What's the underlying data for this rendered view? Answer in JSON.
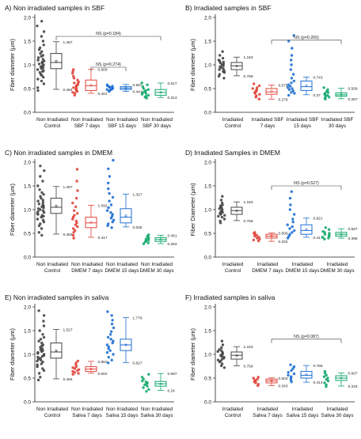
{
  "figure": {
    "colors": {
      "control": "#444444",
      "day7": "#e0453b",
      "day15": "#1f6fd1",
      "day30": "#12a86b"
    }
  },
  "chart_data": [
    {
      "type": "box",
      "title": "A) Non irradiated samples in SBF",
      "ylabel": "Fiber diameter (µm)",
      "ylim": [
        0,
        2.0
      ],
      "yticks": [
        "0.0",
        "0.5",
        "1.0",
        "1.5",
        "2.0"
      ],
      "categories": [
        [
          "Non Irradiated",
          "Control"
        ],
        [
          "Non Irradiated",
          "SBF 7 days"
        ],
        [
          "Non Irradiated",
          "SBF 15 days"
        ],
        [
          "Non Irradiated",
          "SBF 30 days"
        ]
      ],
      "series": [
        {
          "color": "#444444",
          "q1": 0.92,
          "median": 1.05,
          "q3": 1.24,
          "upper_label": "1.487",
          "lower_label": "0.484",
          "upper": 1.487,
          "lower": 0.484,
          "points": [
            0.46,
            0.52,
            0.6,
            0.66,
            0.7,
            0.74,
            0.78,
            0.8,
            0.84,
            0.86,
            0.88,
            0.9,
            0.92,
            0.94,
            0.96,
            0.98,
            1.0,
            1.02,
            1.04,
            1.06,
            1.08,
            1.1,
            1.12,
            1.15,
            1.18,
            1.2,
            1.24,
            1.28,
            1.32,
            1.36,
            1.42,
            1.5,
            1.6,
            1.7,
            1.82,
            1.92
          ]
        },
        {
          "color": "#e0453b",
          "q1": 0.46,
          "median": 0.56,
          "q3": 0.68,
          "upper_label": "0.909",
          "lower_label": "0.401",
          "upper": 0.909,
          "lower": 0.401,
          "points": [
            0.36,
            0.4,
            0.42,
            0.44,
            0.46,
            0.48,
            0.5,
            0.52,
            0.54,
            0.56,
            0.58,
            0.6,
            0.62,
            0.64,
            0.68,
            0.72,
            0.76,
            0.82,
            0.86,
            0.9
          ]
        },
        {
          "color": "#1f6fd1",
          "q1": 0.48,
          "median": 0.51,
          "q3": 0.54,
          "upper_label": "0.587",
          "lower_label": "0.441",
          "upper": 0.587,
          "lower": 0.441,
          "points": [
            0.44,
            0.46,
            0.47,
            0.48,
            0.49,
            0.5,
            0.51,
            0.52,
            0.53,
            0.54,
            0.55,
            0.56,
            0.58
          ]
        },
        {
          "color": "#12a86b",
          "q1": 0.36,
          "median": 0.42,
          "q3": 0.48,
          "upper_label": "0.617",
          "lower_label": "0.313",
          "upper": 0.617,
          "lower": 0.313,
          "points": [
            0.3,
            0.32,
            0.34,
            0.36,
            0.38,
            0.4,
            0.42,
            0.44,
            0.46,
            0.48,
            0.5,
            0.54,
            0.58,
            0.62
          ]
        }
      ],
      "brackets": [
        {
          "from": 1,
          "to": 2,
          "label": "NS (p=0.274)",
          "y": 0.95
        },
        {
          "from": 0,
          "to": 3,
          "label": "NS (p=0.184)",
          "y": 1.6
        }
      ]
    },
    {
      "type": "box",
      "title": "B) Irradiated samples in SBF",
      "ylabel": "Fiber diameter (µm)",
      "ylim": [
        0,
        2.0
      ],
      "yticks": [
        "0.0",
        "0.5",
        "1.0",
        "1.5",
        "2.0"
      ],
      "categories": [
        [
          "Irradiated",
          "Control"
        ],
        [
          "Irradiated SBF",
          "7 days"
        ],
        [
          "Irradiated SBF",
          "15 days"
        ],
        [
          "Irradiated SBF",
          "30 days"
        ]
      ],
      "series": [
        {
          "color": "#444444",
          "q1": 0.9,
          "median": 0.98,
          "q3": 1.05,
          "upper_label": "1.163",
          "lower_label": "0.769",
          "upper": 1.163,
          "lower": 0.769,
          "points": [
            0.72,
            0.76,
            0.8,
            0.84,
            0.86,
            0.88,
            0.9,
            0.92,
            0.94,
            0.96,
            0.98,
            1.0,
            1.02,
            1.04,
            1.06,
            1.08,
            1.1,
            1.14,
            1.2,
            1.28
          ]
        },
        {
          "color": "#e0453b",
          "q1": 0.38,
          "median": 0.43,
          "q3": 0.5,
          "upper_label": "0.575",
          "lower_label": "0.278",
          "upper": 0.575,
          "lower": 0.278,
          "points": [
            0.28,
            0.32,
            0.35,
            0.38,
            0.4,
            0.42,
            0.44,
            0.46,
            0.48,
            0.5,
            0.52,
            0.56,
            0.6
          ]
        },
        {
          "color": "#1f6fd1",
          "q1": 0.46,
          "median": 0.54,
          "q3": 0.66,
          "upper_label": "0.743",
          "lower_label": "0.37",
          "upper": 0.743,
          "lower": 0.37,
          "points": [
            0.36,
            0.4,
            0.42,
            0.45,
            0.48,
            0.5,
            0.52,
            0.55,
            0.58,
            0.62,
            0.66,
            0.72,
            0.8,
            0.9,
            1.0,
            1.1,
            1.2,
            1.35,
            1.5,
            1.62
          ]
        },
        {
          "color": "#12a86b",
          "q1": 0.34,
          "median": 0.37,
          "q3": 0.41,
          "upper_label": "0.509",
          "lower_label": "0.287",
          "upper": 0.509,
          "lower": 0.287,
          "points": [
            0.28,
            0.3,
            0.32,
            0.34,
            0.36,
            0.38,
            0.4,
            0.42,
            0.44,
            0.48,
            0.52
          ]
        }
      ],
      "brackets": [
        {
          "from": 1,
          "to": 3,
          "label": "NS (p=0.265)",
          "y": 1.52
        }
      ]
    },
    {
      "type": "box",
      "title": "C) Non irradiated samples in DMEM",
      "ylabel": "Fiber diameter (µm)",
      "ylim": [
        0,
        2.0
      ],
      "yticks": [
        "0.0",
        "0.5",
        "1.0",
        "1.5",
        "2.0"
      ],
      "categories": [
        [
          "Non Irradiated",
          "Control"
        ],
        [
          "Non Irradiated",
          "DMEM 7 days"
        ],
        [
          "Non Irradiated",
          "DMEM 15 days"
        ],
        [
          "Non Irradiated",
          "DMEM 30 days"
        ]
      ],
      "series": [
        {
          "color": "#444444",
          "q1": 0.92,
          "median": 1.05,
          "q3": 1.24,
          "upper_label": "1.487",
          "lower_label": "0.484",
          "upper": 1.487,
          "lower": 0.484,
          "points": [
            0.46,
            0.52,
            0.6,
            0.66,
            0.7,
            0.74,
            0.78,
            0.8,
            0.84,
            0.86,
            0.88,
            0.9,
            0.92,
            0.94,
            0.96,
            0.98,
            1.0,
            1.02,
            1.04,
            1.06,
            1.08,
            1.1,
            1.12,
            1.15,
            1.18,
            1.2,
            1.24,
            1.28,
            1.32,
            1.36,
            1.42,
            1.5,
            1.6,
            1.7,
            1.82,
            1.92
          ]
        },
        {
          "color": "#e0453b",
          "q1": 0.62,
          "median": 0.72,
          "q3": 0.84,
          "upper_label": "1.092",
          "lower_label": "0.417",
          "upper": 1.092,
          "lower": 0.417,
          "points": [
            0.4,
            0.46,
            0.52,
            0.56,
            0.6,
            0.64,
            0.68,
            0.72,
            0.76,
            0.8,
            0.84,
            0.88,
            0.92,
            0.98,
            1.06,
            1.14,
            1.24,
            1.4,
            1.6,
            1.85
          ]
        },
        {
          "color": "#1f6fd1",
          "q1": 0.72,
          "median": 0.84,
          "q3": 1.02,
          "upper_label": "1.327",
          "lower_label": "0.636",
          "upper": 1.327,
          "lower": 0.636,
          "points": [
            0.62,
            0.66,
            0.7,
            0.74,
            0.78,
            0.82,
            0.86,
            0.9,
            0.94,
            0.98,
            1.04,
            1.1,
            1.18,
            1.26,
            1.34,
            1.44,
            1.56,
            1.7,
            1.86,
            2.04
          ]
        },
        {
          "color": "#12a86b",
          "q1": 0.33,
          "median": 0.37,
          "q3": 0.41,
          "upper_label": "0.461",
          "lower_label": "0.283",
          "upper": 0.461,
          "lower": 0.283,
          "points": [
            0.28,
            0.3,
            0.32,
            0.34,
            0.36,
            0.38,
            0.4,
            0.42,
            0.44,
            0.47
          ]
        }
      ],
      "brackets": []
    },
    {
      "type": "box",
      "title": "D) Irradiated Samples in DMEM",
      "ylabel": "Fiber Diameter (µm)",
      "ylim": [
        0,
        2.0
      ],
      "yticks": [
        "0.0",
        "0.5",
        "1.0",
        "1.5",
        "2.0"
      ],
      "categories": [
        [
          "Irradiated",
          "Control"
        ],
        [
          "Irradiated",
          "DMEM 7 days"
        ],
        [
          "Irradiated",
          "DMEM 15 days"
        ],
        [
          "Irradiated",
          "DMEM 30 days"
        ]
      ],
      "series": [
        {
          "color": "#444444",
          "q1": 0.9,
          "median": 0.98,
          "q3": 1.05,
          "upper_label": "1.163",
          "lower_label": "0.769",
          "upper": 1.163,
          "lower": 0.769,
          "points": [
            0.72,
            0.76,
            0.8,
            0.84,
            0.86,
            0.88,
            0.9,
            0.92,
            0.94,
            0.96,
            0.98,
            1.0,
            1.02,
            1.04,
            1.06,
            1.08,
            1.1,
            1.14,
            1.2,
            1.28
          ]
        },
        {
          "color": "#e0453b",
          "q1": 0.4,
          "median": 0.44,
          "q3": 0.48,
          "upper_label": "0.509",
          "lower_label": "0.332",
          "upper": 0.509,
          "lower": 0.332,
          "points": [
            0.34,
            0.36,
            0.38,
            0.4,
            0.42,
            0.44,
            0.46,
            0.48,
            0.5,
            0.52
          ]
        },
        {
          "color": "#1f6fd1",
          "q1": 0.48,
          "median": 0.56,
          "q3": 0.68,
          "upper_label": "0.821",
          "lower_label": "0.417",
          "upper": 0.821,
          "lower": 0.417,
          "points": [
            0.4,
            0.44,
            0.48,
            0.52,
            0.56,
            0.6,
            0.64,
            0.68,
            0.74,
            0.8,
            0.9,
            1.0,
            1.1,
            1.24,
            1.38
          ]
        },
        {
          "color": "#12a86b",
          "q1": 0.44,
          "median": 0.48,
          "q3": 0.52,
          "upper_label": "0.597",
          "lower_label": "0.398",
          "upper": 0.597,
          "lower": 0.398,
          "points": [
            0.38,
            0.4,
            0.42,
            0.44,
            0.46,
            0.48,
            0.5,
            0.52,
            0.54,
            0.58,
            0.62
          ]
        }
      ],
      "brackets": [
        {
          "from": 1,
          "to": 3,
          "label": "NS (p=0.527)",
          "y": 1.5
        }
      ]
    },
    {
      "type": "box",
      "title": "E) Non irradiated samples in saliva",
      "ylabel": "Fiber diameter (µm)",
      "ylim": [
        0,
        2.0
      ],
      "yticks": [
        "0.0",
        "0.5",
        "1.0",
        "1.5",
        "2.0"
      ],
      "categories": [
        [
          "Non Irradiated",
          "Control"
        ],
        [
          "Non Irradiated",
          "Saliva 7 days"
        ],
        [
          "Non Irradiated",
          "Saliva 15 days"
        ],
        [
          "Non Irradiated",
          "Saliva 30 days"
        ]
      ],
      "series": [
        {
          "color": "#444444",
          "q1": 0.92,
          "median": 1.05,
          "q3": 1.24,
          "upper_label": "1.527",
          "lower_label": "0.484",
          "upper": 1.527,
          "lower": 0.484,
          "points": [
            0.46,
            0.52,
            0.6,
            0.66,
            0.7,
            0.74,
            0.78,
            0.8,
            0.84,
            0.86,
            0.88,
            0.9,
            0.92,
            0.94,
            0.96,
            0.98,
            1.0,
            1.02,
            1.04,
            1.06,
            1.08,
            1.1,
            1.12,
            1.15,
            1.18,
            1.2,
            1.24,
            1.28,
            1.32,
            1.36,
            1.42,
            1.5,
            1.6,
            1.7,
            1.82,
            1.92
          ]
        },
        {
          "color": "#e0453b",
          "q1": 0.64,
          "median": 0.69,
          "q3": 0.74,
          "upper_label": "0.853",
          "lower_label": "0.602",
          "upper": 0.853,
          "lower": 0.602,
          "points": [
            0.58,
            0.6,
            0.62,
            0.64,
            0.66,
            0.68,
            0.7,
            0.72,
            0.74,
            0.78,
            0.82,
            0.86
          ]
        },
        {
          "color": "#1f6fd1",
          "q1": 1.08,
          "median": 1.2,
          "q3": 1.32,
          "upper_label": "1.776",
          "lower_label": "0.827",
          "upper": 1.776,
          "lower": 0.827,
          "points": [
            0.82,
            0.88,
            0.94,
            1.0,
            1.04,
            1.08,
            1.12,
            1.16,
            1.2,
            1.24,
            1.28,
            1.32,
            1.36,
            1.42,
            1.48,
            1.56,
            1.64,
            1.72,
            1.82,
            1.9
          ]
        },
        {
          "color": "#12a86b",
          "q1": 0.33,
          "median": 0.38,
          "q3": 0.43,
          "upper_label": "0.597",
          "lower_label": "0.24",
          "upper": 0.597,
          "lower": 0.24,
          "points": [
            0.22,
            0.26,
            0.3,
            0.33,
            0.36,
            0.38,
            0.4,
            0.42,
            0.44,
            0.48,
            0.52,
            0.58
          ]
        }
      ],
      "brackets": []
    },
    {
      "type": "box",
      "title": "F) Irradiated samples in saliva",
      "ylabel": "Fiber diameter (µm)",
      "ylim": [
        0,
        2.0
      ],
      "yticks": [
        "0.0",
        "0.5",
        "1.0",
        "1.5",
        "2.0"
      ],
      "categories": [
        [
          "Irradiated",
          "Control"
        ],
        [
          "Irradiated",
          "Saliva 7 days"
        ],
        [
          "Irradiated",
          "Saliva 15 days"
        ],
        [
          "Irradiated",
          "Saliva 30 days"
        ]
      ],
      "series": [
        {
          "color": "#444444",
          "q1": 0.9,
          "median": 0.98,
          "q3": 1.05,
          "upper_label": "1.163",
          "lower_label": "0.759",
          "upper": 1.163,
          "lower": 0.759,
          "points": [
            0.72,
            0.76,
            0.8,
            0.84,
            0.86,
            0.88,
            0.9,
            0.92,
            0.94,
            0.96,
            0.98,
            1.0,
            1.02,
            1.04,
            1.06,
            1.08,
            1.1,
            1.14,
            1.2,
            1.28
          ]
        },
        {
          "color": "#e0453b",
          "q1": 0.4,
          "median": 0.44,
          "q3": 0.48,
          "upper_label": "0.503",
          "lower_label": "0.343",
          "upper": 0.503,
          "lower": 0.343,
          "points": [
            0.34,
            0.37,
            0.4,
            0.42,
            0.44,
            0.46,
            0.48,
            0.5,
            0.52
          ]
        },
        {
          "color": "#1f6fd1",
          "q1": 0.5,
          "median": 0.56,
          "q3": 0.64,
          "upper_label": "0.766",
          "lower_label": "0.414",
          "upper": 0.766,
          "lower": 0.414,
          "points": [
            0.42,
            0.46,
            0.5,
            0.53,
            0.56,
            0.59,
            0.62,
            0.66,
            0.7,
            0.74,
            0.78
          ]
        },
        {
          "color": "#12a86b",
          "q1": 0.45,
          "median": 0.5,
          "q3": 0.55,
          "upper_label": "0.607",
          "lower_label": "0.333",
          "upper": 0.607,
          "lower": 0.333,
          "points": [
            0.32,
            0.36,
            0.4,
            0.44,
            0.47,
            0.5,
            0.53,
            0.56,
            0.6,
            0.64
          ]
        }
      ],
      "brackets": [
        {
          "from": 1,
          "to": 3,
          "label": "NS (p=0.087)",
          "y": 1.32
        }
      ]
    }
  ]
}
